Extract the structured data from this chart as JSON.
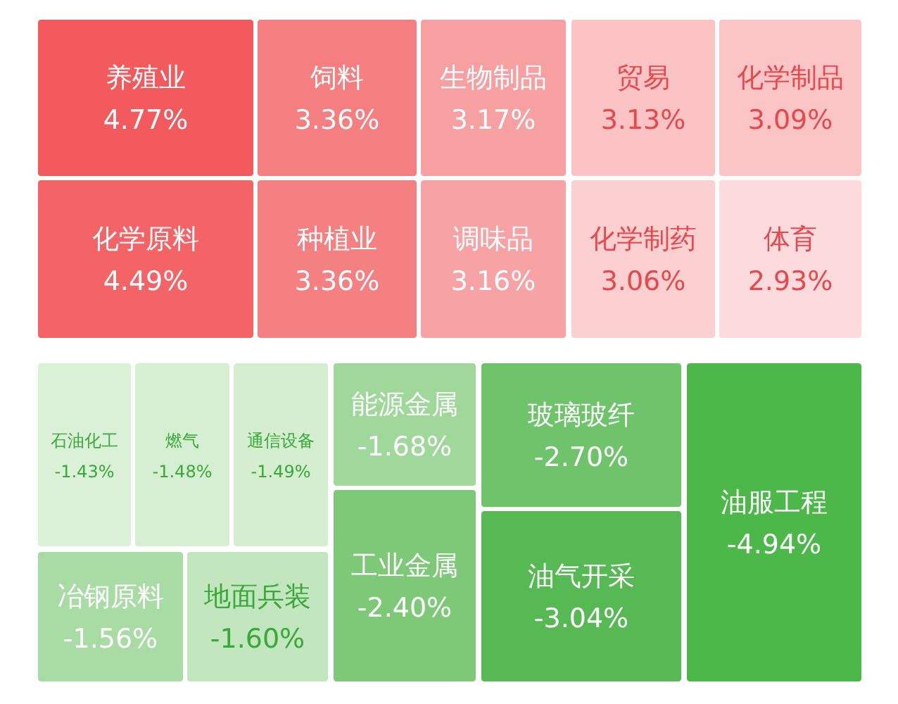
{
  "chart_data": {
    "type": "other",
    "categories": [
      "养殖业",
      "饲料",
      "生物制品",
      "贸易",
      "化学制品",
      "化学原料",
      "种植业",
      "调味品",
      "化学制药",
      "体育",
      "石油化工",
      "燃气",
      "通信设备",
      "能源金属",
      "玻璃玻纤",
      "油服工程",
      "冶钢原料",
      "地面兵装",
      "工业金属",
      "油气开采"
    ],
    "values": [
      4.77,
      3.36,
      3.17,
      3.13,
      3.09,
      4.49,
      3.36,
      3.16,
      3.06,
      2.93,
      -1.43,
      -1.48,
      -1.49,
      -1.68,
      -2.7,
      -4.94,
      -1.56,
      -1.6,
      -2.4,
      -3.04
    ],
    "value_labels": [
      "4.77%",
      "3.36%",
      "3.17%",
      "3.13%",
      "3.09%",
      "4.49%",
      "3.36%",
      "3.16%",
      "3.06%",
      "2.93%",
      "-1.43%",
      "-1.48%",
      "-1.49%",
      "-1.68%",
      "-2.70%",
      "-4.94%",
      "-1.56%",
      "-1.60%",
      "-2.40%",
      "-3.04%"
    ],
    "colors": [
      "#f25a5e",
      "#f47e80",
      "#f7a0a2",
      "#fbc3c4",
      "#fbc5c6",
      "#f46366",
      "#f48082",
      "#f7a2a4",
      "#fcd0d1",
      "#fddbdc",
      "#daf0d7",
      "#d6efd2",
      "#d4eecf",
      "#9fd89a",
      "#6fc36b",
      "#4cb84a",
      "#a9dca4",
      "#c2e6bd",
      "#7dc978",
      "#57b954"
    ]
  }
}
